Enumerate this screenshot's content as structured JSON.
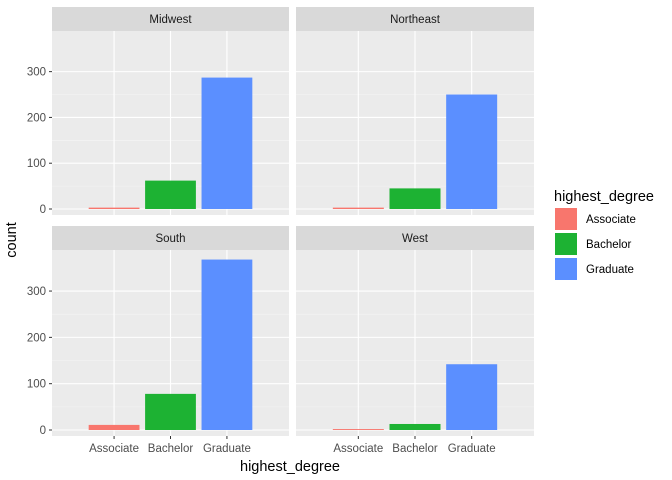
{
  "chart_data": {
    "type": "bar",
    "layout": "facet_wrap",
    "categories": [
      "Associate",
      "Bachelor",
      "Graduate"
    ],
    "xlabel": "highest_degree",
    "ylabel": "count",
    "ylim": [
      0,
      380
    ],
    "yticks": [
      0,
      100,
      200,
      300
    ],
    "grid": true,
    "colors": {
      "Associate": "#F8766D",
      "Bachelor": "#1DB233",
      "Graduate": "#5B8FFF"
    },
    "facets": [
      {
        "name": "Midwest",
        "values": [
          3,
          62,
          287
        ]
      },
      {
        "name": "Northeast",
        "values": [
          3,
          45,
          250
        ]
      },
      {
        "name": "South",
        "values": [
          11,
          78,
          368
        ]
      },
      {
        "name": "West",
        "values": [
          2,
          13,
          142
        ]
      }
    ],
    "legend": {
      "title": "highest_degree",
      "position": "right",
      "items": [
        "Associate",
        "Bachelor",
        "Graduate"
      ]
    }
  }
}
